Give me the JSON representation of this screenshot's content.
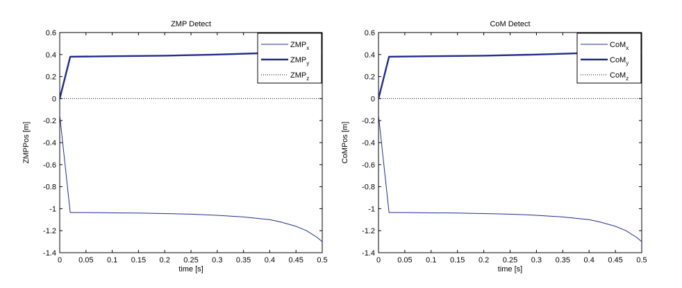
{
  "chart_data": [
    {
      "type": "line",
      "title": "ZMP Detect",
      "xlabel": "time [s]",
      "ylabel": "ZMPPos [m]",
      "xlim": [
        0,
        0.5
      ],
      "ylim": [
        -1.4,
        0.6
      ],
      "xticks": [
        0,
        0.05,
        0.1,
        0.15,
        0.2,
        0.25,
        0.3,
        0.35,
        0.4,
        0.45,
        0.5
      ],
      "xtick_labels": [
        "0",
        "0.05",
        "0.1",
        "0.15",
        "0.2",
        "0.25",
        "0.3",
        "0.35",
        "0.4",
        "0.45",
        "0.5"
      ],
      "yticks": [
        0.6,
        0.4,
        0.2,
        0,
        -0.2,
        -0.4,
        -0.6,
        -0.8,
        -1,
        -1.2,
        -1.4
      ],
      "ytick_labels": [
        "0.6",
        "0.4",
        "0.2",
        "0",
        "-0.2",
        "-0.4",
        "-0.6",
        "-0.8",
        "-1",
        "-1.2",
        "-1.4"
      ],
      "grid": false,
      "legend_position": "top-right",
      "series": [
        {
          "name_base": "ZMP",
          "name_sub": "x",
          "style": "thin",
          "color": "#1f2a8a",
          "x": [
            0,
            0.02,
            0.05,
            0.1,
            0.15,
            0.2,
            0.25,
            0.3,
            0.35,
            0.4,
            0.42,
            0.45,
            0.47,
            0.49,
            0.5
          ],
          "y": [
            -0.15,
            -1.035,
            -1.035,
            -1.038,
            -1.04,
            -1.045,
            -1.05,
            -1.06,
            -1.075,
            -1.1,
            -1.12,
            -1.16,
            -1.2,
            -1.26,
            -1.3
          ]
        },
        {
          "name_base": "ZMP",
          "name_sub": "y",
          "style": "thick",
          "color": "#1f2a8a",
          "x": [
            0,
            0.02,
            0.1,
            0.2,
            0.3,
            0.4,
            0.45,
            0.5
          ],
          "y": [
            0.0,
            0.38,
            0.385,
            0.39,
            0.4,
            0.415,
            0.42,
            0.425
          ]
        },
        {
          "name_base": "ZMP",
          "name_sub": "z",
          "style": "dotted",
          "color": "#000000",
          "x": [
            0,
            0.5
          ],
          "y": [
            0,
            0
          ]
        }
      ]
    },
    {
      "type": "line",
      "title": "CoM Detect",
      "xlabel": "time [s]",
      "ylabel": "CoMPos [m]",
      "xlim": [
        0,
        0.5
      ],
      "ylim": [
        -1.4,
        0.6
      ],
      "xticks": [
        0,
        0.05,
        0.1,
        0.15,
        0.2,
        0.25,
        0.3,
        0.35,
        0.4,
        0.45,
        0.5
      ],
      "xtick_labels": [
        "0",
        "0.05",
        "0.1",
        "0.15",
        "0.2",
        "0.25",
        "0.3",
        "0.35",
        "0.4",
        "0.45",
        "0.5"
      ],
      "yticks": [
        0.6,
        0.4,
        0.2,
        0,
        -0.2,
        -0.4,
        -0.6,
        -0.8,
        -1,
        -1.2,
        -1.4
      ],
      "ytick_labels": [
        "0.6",
        "0.4",
        "0.2",
        "0",
        "-0.2",
        "-0.4",
        "-0.6",
        "-0.8",
        "-1",
        "-1.2",
        "-1.4"
      ],
      "grid": false,
      "legend_position": "top-right",
      "series": [
        {
          "name_base": "CoM",
          "name_sub": "x",
          "style": "thin",
          "color": "#1f2a8a",
          "x": [
            0,
            0.02,
            0.05,
            0.1,
            0.15,
            0.2,
            0.25,
            0.3,
            0.35,
            0.4,
            0.42,
            0.45,
            0.47,
            0.49,
            0.5
          ],
          "y": [
            -0.15,
            -1.035,
            -1.035,
            -1.038,
            -1.04,
            -1.045,
            -1.05,
            -1.06,
            -1.075,
            -1.1,
            -1.12,
            -1.16,
            -1.2,
            -1.26,
            -1.3
          ]
        },
        {
          "name_base": "CoM",
          "name_sub": "y",
          "style": "thick",
          "color": "#1f2a8a",
          "x": [
            0,
            0.02,
            0.1,
            0.2,
            0.3,
            0.4,
            0.45,
            0.5
          ],
          "y": [
            0.0,
            0.38,
            0.385,
            0.39,
            0.4,
            0.415,
            0.42,
            0.425
          ]
        },
        {
          "name_base": "CoM",
          "name_sub": "z",
          "style": "dotted",
          "color": "#000000",
          "x": [
            0,
            0.5
          ],
          "y": [
            0,
            0
          ]
        }
      ]
    }
  ]
}
